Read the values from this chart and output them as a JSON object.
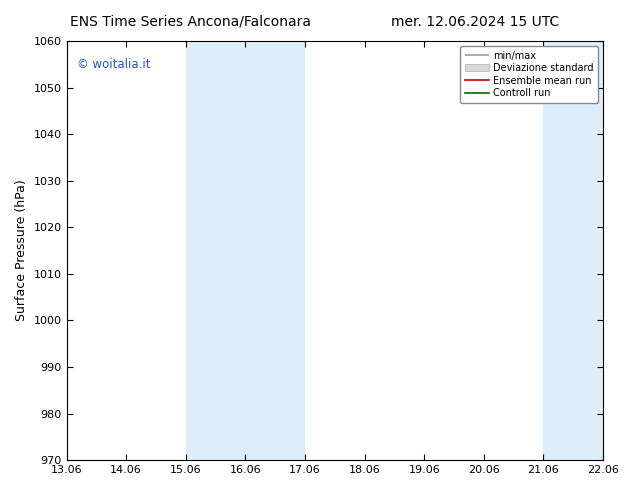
{
  "title_left": "ENS Time Series Ancona/Falconara",
  "title_right": "mer. 12.06.2024 15 UTC",
  "ylabel": "Surface Pressure (hPa)",
  "ylim": [
    970,
    1060
  ],
  "yticks": [
    970,
    980,
    990,
    1000,
    1010,
    1020,
    1030,
    1040,
    1050,
    1060
  ],
  "x_labels": [
    "13.06",
    "14.06",
    "15.06",
    "16.06",
    "17.06",
    "18.06",
    "19.06",
    "20.06",
    "21.06",
    "22.06"
  ],
  "x_values": [
    0,
    1,
    2,
    3,
    4,
    5,
    6,
    7,
    8,
    9
  ],
  "shaded_bands": [
    {
      "xmin": 2,
      "xmax": 3,
      "color": "#ddeef8"
    },
    {
      "xmin": 3,
      "xmax": 4,
      "color": "#ddeef8"
    },
    {
      "xmin": 8,
      "xmax": 9,
      "color": "#ddeef8"
    }
  ],
  "copyright_text": "© woitalia.it",
  "legend_items": [
    {
      "label": "min/max",
      "color": "#a0a0a0",
      "lw": 1.2
    },
    {
      "label": "Deviazione standard",
      "color": "#c0c0c0",
      "lw": 5
    },
    {
      "label": "Ensemble mean run",
      "color": "#cc0000",
      "lw": 1.2
    },
    {
      "label": "Controll run",
      "color": "#006600",
      "lw": 1.2
    }
  ],
  "bg_color": "#ffffff",
  "plot_bg_color": "#ffffff",
  "title_fontsize": 10,
  "tick_fontsize": 8,
  "ylabel_fontsize": 9,
  "copyright_color": "#2255cc",
  "copyright_fontsize": 8.5
}
